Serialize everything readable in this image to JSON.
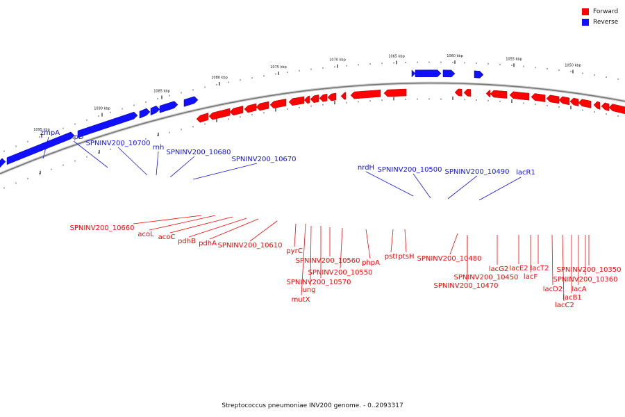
{
  "colors": {
    "forward": "#ff0000",
    "reverse": "#1010ff",
    "backbone": "#888888"
  },
  "legend": [
    {
      "label": "Forward",
      "color": "#ff0000"
    },
    {
      "label": "Reverse",
      "color": "#1010ff"
    }
  ],
  "caption": "Streptococcus pneumoniae INV200 genome. - 0..2093317",
  "ticks": [
    "1095 kbp",
    "1090 kbp",
    "1085 kbp",
    "1080 kbp",
    "1075 kbp",
    "1070 kbp",
    "1065 kbp",
    "1060 kbp",
    "1055 kbp",
    "1050 kbp"
  ],
  "reverse_labels": [
    "zmpA",
    "zmpD",
    "SPNINV200_10700",
    "rnh",
    "SPNINV200_10680",
    "SPNINV200_10670",
    "nrdH",
    "SPNINV200_10500",
    "SPNINV200_10490",
    "lacR1"
  ],
  "forward_labels": [
    "SPNINV200_10660",
    "acoL",
    "acoC",
    "pdhB",
    "pdhA",
    "SPNINV200_10610",
    "pyrC",
    "SPNINV200_10560",
    "SPNINV200_10550",
    "SPNINV200_10570",
    "ung",
    "mutX",
    "phpA",
    "pstI",
    "ptsH",
    "SPNINV200_10480",
    "SPNINV200_10450",
    "SPNINV200_10470",
    "lacG2",
    "lacE2",
    "lacT2",
    "lacF",
    "lacD2",
    "lacB1",
    "lacC2",
    "lacA",
    "SPNINV200_10350",
    "SPNINV200_10360"
  ]
}
